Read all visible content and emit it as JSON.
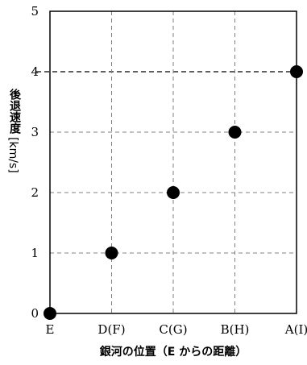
{
  "chart_data": {
    "type": "scatter",
    "categories": [
      "E",
      "D(F)",
      "C(G)",
      "B(H)",
      "A(I)"
    ],
    "values": [
      0,
      1,
      2,
      3,
      4
    ],
    "xlabel": "銀河の位置（E からの距離）",
    "ylabel_text": "後退速度",
    "ylabel_unit": "[km/s]",
    "ylim": [
      0,
      5
    ],
    "yticks": [
      "0",
      "1",
      "2",
      "3",
      "4",
      "5"
    ],
    "grid": true,
    "highlight_y": 4
  }
}
